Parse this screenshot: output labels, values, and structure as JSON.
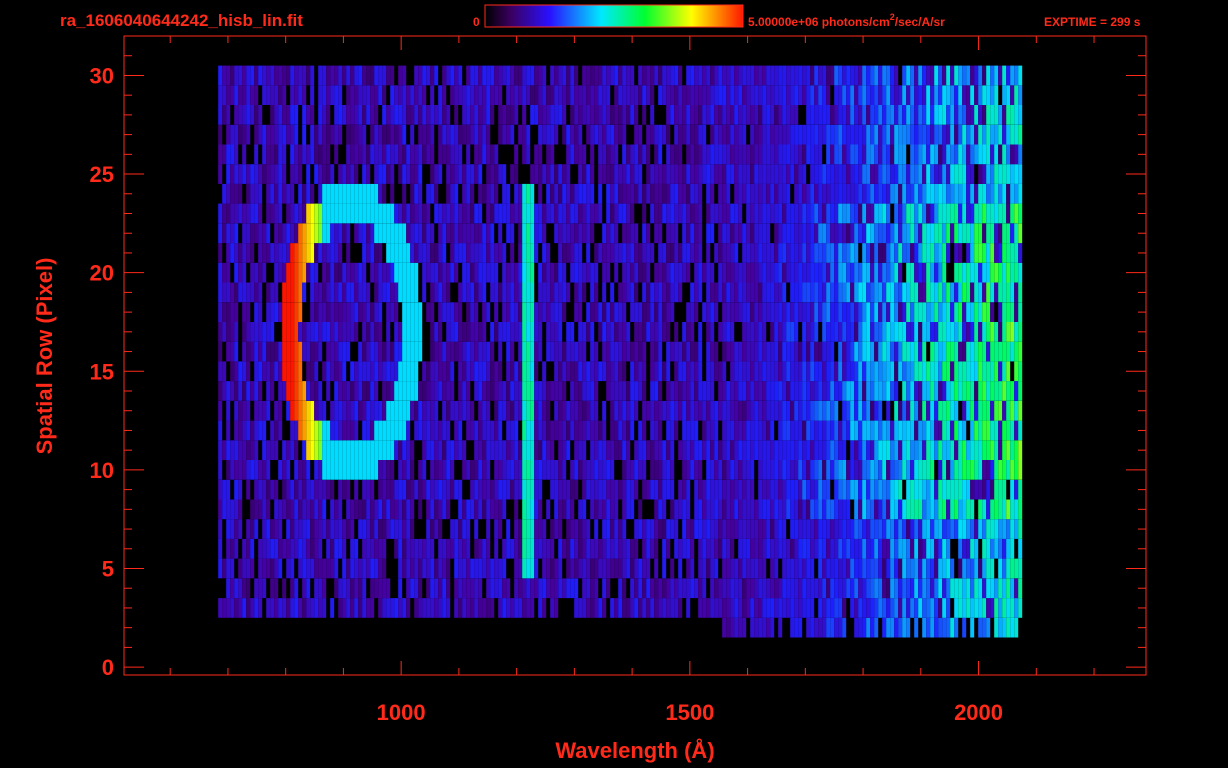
{
  "header": {
    "filename": "ra_1606040644242_hisb_lin.fit",
    "colorbar_min": "0",
    "colorbar_max_label": "5.00000e+06 photons/cm",
    "colorbar_units_exp": "2",
    "colorbar_units_rest": "/sec/A/sr",
    "exptime": "EXPTIME = 299 s"
  },
  "colors": {
    "label": "#ff2a1a",
    "background": "#000000"
  },
  "chart_data": {
    "type": "heatmap",
    "xlabel": "Wavelength (Å)",
    "ylabel": "Spatial Row (Pixel)",
    "xlim": [
      520,
      2290
    ],
    "ylim": [
      -0.4,
      32
    ],
    "x_ticks": [
      1000,
      1500,
      2000
    ],
    "y_ticks": [
      0,
      5,
      10,
      15,
      20,
      25,
      30
    ],
    "rows": [
      0,
      30
    ],
    "wavelength_range_with_signal": [
      680,
      2075
    ],
    "colorbar": {
      "min": 0,
      "max": 5000000,
      "units": "photons/cm^2/sec/A/sr",
      "colormap": "rainbow"
    },
    "features": [
      {
        "name": "ring-emission",
        "center_wavelength": 910,
        "center_row": 17,
        "wavelength_extent": [
          780,
          1020
        ],
        "row_extent": [
          9,
          24
        ],
        "peak_intensity_fraction": 1.0
      },
      {
        "name": "vertical-line-emission",
        "wavelength": 1216,
        "row_extent": [
          5,
          24
        ],
        "intensity_fraction": 0.5
      },
      {
        "name": "long-wavelength-continuum",
        "wavelength_extent": [
          1700,
          2070
        ],
        "row_extent": [
          2,
          30
        ],
        "intensity_fraction": 0.45
      }
    ]
  }
}
